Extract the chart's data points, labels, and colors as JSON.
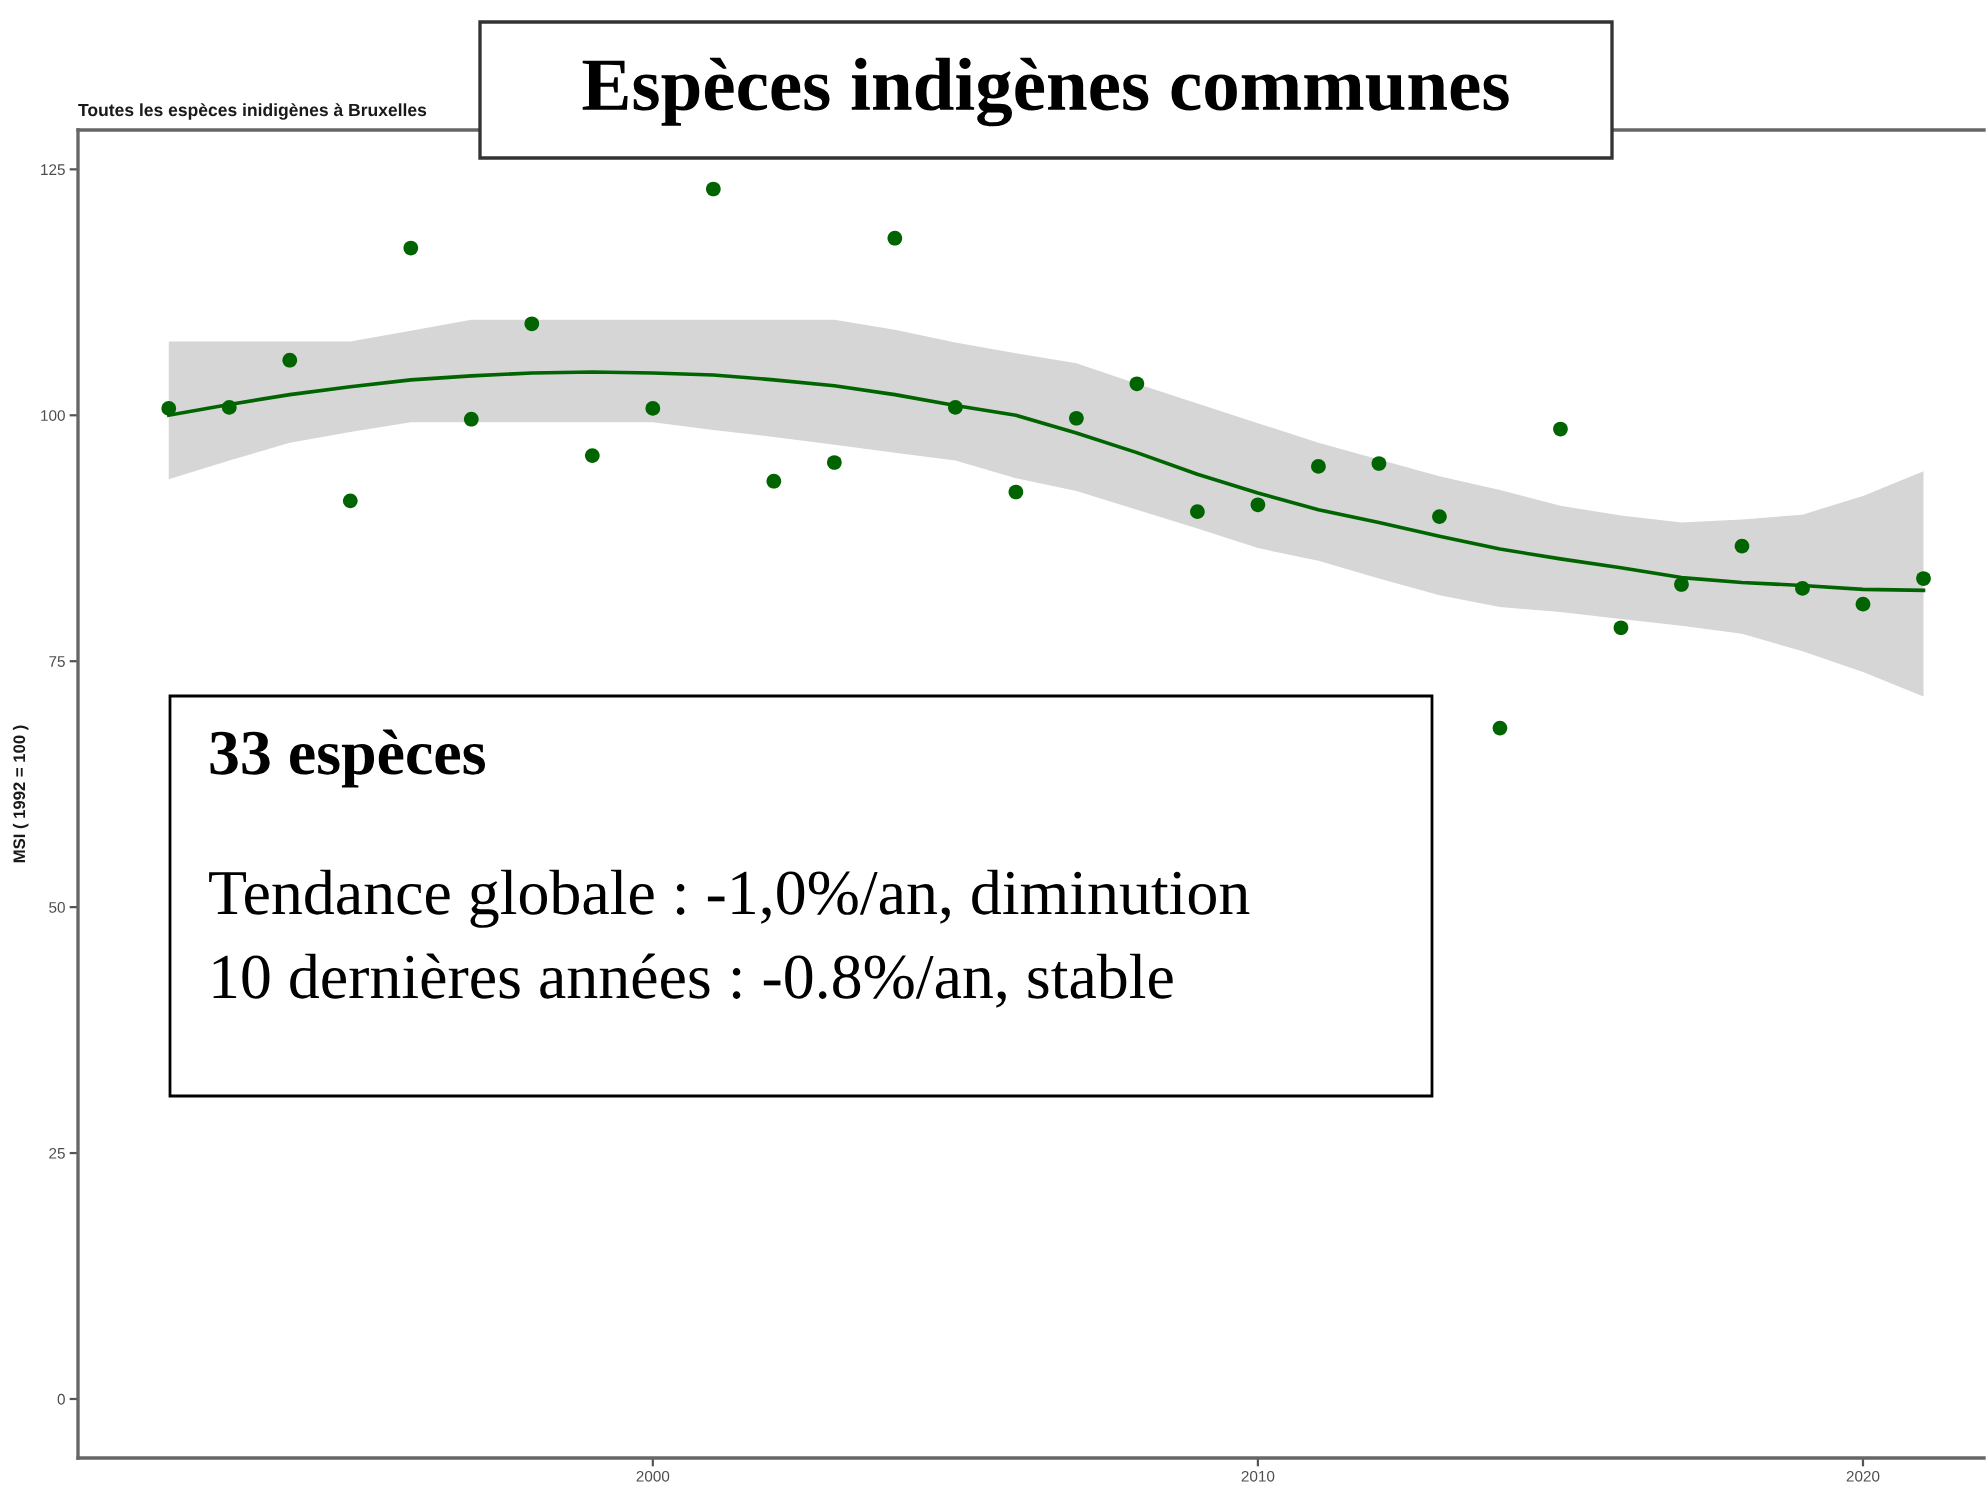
{
  "chart_data": {
    "type": "scatter",
    "title": "Espèces indigènes communes",
    "subtitle": "Toutes les espèces inidigènes à Bruxelles",
    "ylabel": "MSI ( 1992 = 100 )",
    "annotations": [
      "33 espèces",
      "Tendance globale : -1,0%/an, diminution",
      "10 dernières années : -0.8%/an, stable"
    ],
    "x": [
      1992,
      1993,
      1994,
      1995,
      1996,
      1997,
      1998,
      1999,
      2000,
      2001,
      2002,
      2003,
      2004,
      2005,
      2006,
      2007,
      2008,
      2009,
      2010,
      2011,
      2012,
      2013,
      2014,
      2015,
      2016,
      2017,
      2018,
      2019,
      2020,
      2021
    ],
    "series": [
      {
        "color": "#006400",
        "marker": "circle",
        "values": [
          100.7,
          100.8,
          105.6,
          91.3,
          117.0,
          99.6,
          109.3,
          95.9,
          100.7,
          123.0,
          93.3,
          95.2,
          118.0,
          100.8,
          92.2,
          99.7,
          103.2,
          90.2,
          90.9,
          94.8,
          95.1,
          89.7,
          68.2,
          98.6,
          78.4,
          82.8,
          86.7,
          82.4,
          80.8,
          83.4
        ]
      },
      {
        "type": "line",
        "color": "#006400",
        "values": [
          100.0,
          101.1,
          102.1,
          102.9,
          103.6,
          104.0,
          104.3,
          104.4,
          104.3,
          104.1,
          103.6,
          103.0,
          102.1,
          101.0,
          100.0,
          98.2,
          96.2,
          94.0,
          92.1,
          90.4,
          89.1,
          87.7,
          86.4,
          85.4,
          84.5,
          83.5,
          83.0,
          82.7,
          82.3,
          82.2
        ],
        "lower": [
          93.5,
          95.4,
          97.2,
          98.3,
          99.3,
          99.3,
          99.3,
          99.3,
          99.3,
          98.5,
          97.8,
          97.0,
          96.2,
          95.4,
          93.6,
          92.3,
          90.4,
          88.5,
          86.5,
          85.2,
          83.4,
          81.7,
          80.5,
          80.0,
          79.3,
          78.6,
          77.8,
          76.0,
          73.9,
          71.4
        ],
        "upper": [
          107.5,
          107.5,
          107.5,
          107.5,
          108.6,
          109.7,
          109.7,
          109.7,
          109.7,
          109.7,
          109.7,
          109.7,
          108.7,
          107.4,
          106.3,
          105.3,
          103.2,
          101.2,
          99.2,
          97.2,
          95.5,
          93.8,
          92.4,
          90.8,
          89.8,
          89.1,
          89.4,
          89.9,
          91.8,
          94.3
        ]
      }
    ],
    "xlim": [
      1990.5,
      2022
    ],
    "ylim": [
      -6,
      129
    ],
    "xticks": [
      2000,
      2010,
      2020
    ],
    "yticks": [
      0,
      25,
      50,
      75,
      100,
      125
    ]
  }
}
